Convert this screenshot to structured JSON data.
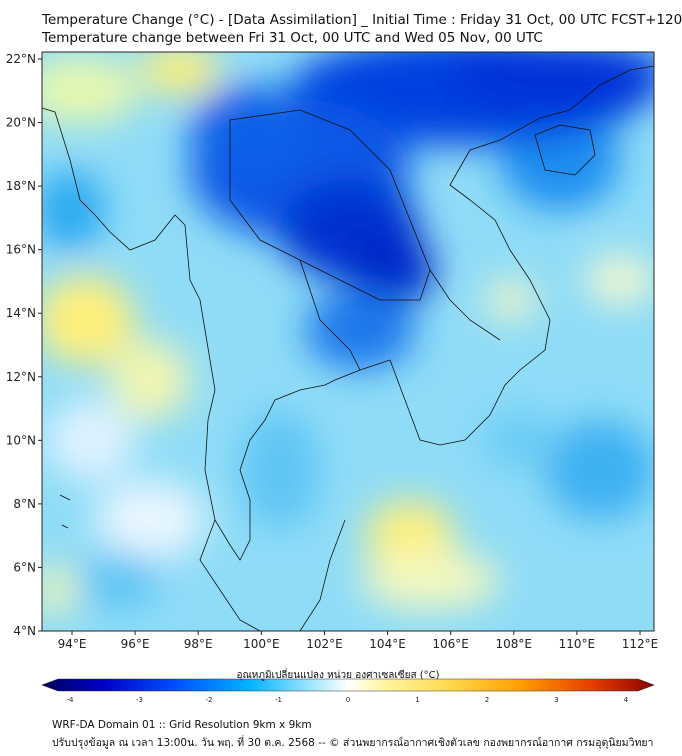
{
  "title": {
    "line1": "Temperature Change (°C) - [Data Assimilation] _ Initial Time : Friday 31 Oct, 00 UTC FCST+120",
    "line2": "Temperature change between Fri 31 Oct, 00 UTC and Wed 05 Nov, 00 UTC"
  },
  "axes": {
    "lat_labels": [
      "22°N",
      "20°N",
      "18°N",
      "16°N",
      "14°N",
      "12°N",
      "10°N",
      "8°N",
      "6°N",
      "4°N"
    ],
    "lon_labels": [
      "94°E",
      "96°E",
      "98°E",
      "100°E",
      "102°E",
      "104°E",
      "106°E",
      "108°E",
      "110°E",
      "112°E"
    ]
  },
  "colorbar": {
    "title": "อุณหภูมิเปลี่ยนแปลง หน่วย องศาเซลเซียส (°C)",
    "min": -4,
    "max": 4,
    "tick_labels": [
      "-4",
      "-3",
      "-2",
      "-1",
      "0",
      "1",
      "2",
      "3",
      "4"
    ],
    "colors": [
      "#00005a",
      "#0000c8",
      "#0050ff",
      "#00b4ff",
      "#a0e6ff",
      "#ffffff",
      "#fff5a0",
      "#ffdc50",
      "#ffa000",
      "#e63c00",
      "#8c0000"
    ]
  },
  "footer": {
    "line1": "WRF-DA Domain 01 :: Grid Resolution 9km x 9km",
    "line2": "ปรับปรุงข้อมูล ณ เวลา 13:00น. วัน พฤ. ที่ 30 ต.ค. 2568 -- © ส่วนพยากรณ์อากาศเชิงตัวเลข กองพยากรณ์อากาศ กรมอุตุนิยมวิทยา"
  }
}
